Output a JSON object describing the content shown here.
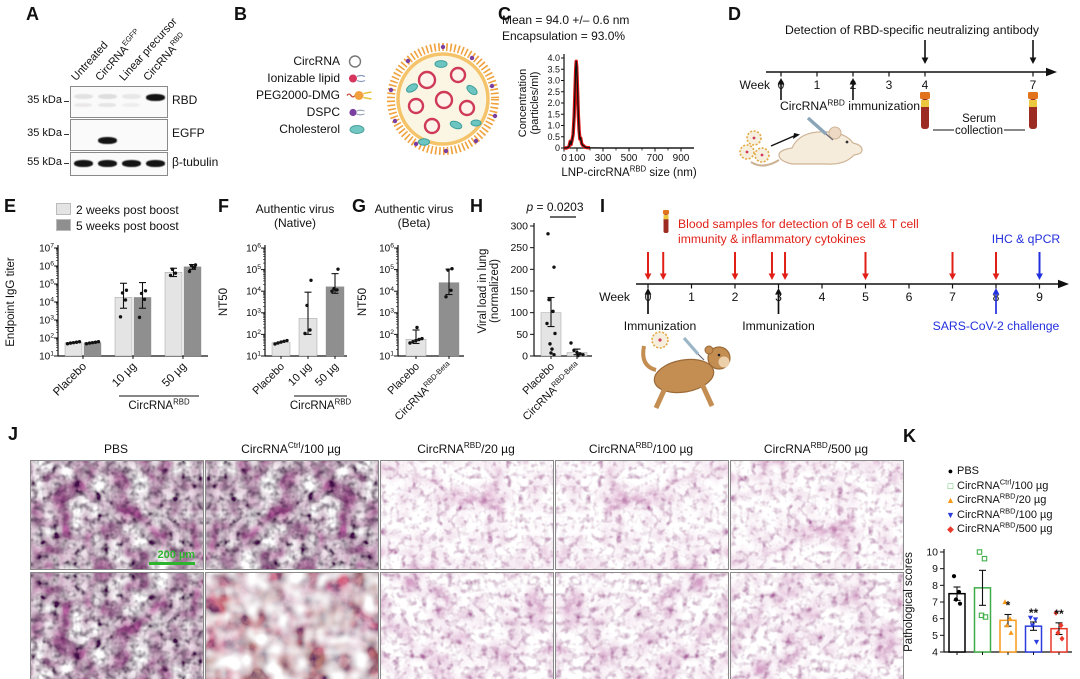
{
  "colors": {
    "bar_light": "#e4e4e4",
    "bar_dark": "#8f8f8f",
    "accent_red": "#e02017",
    "accent_blue": "#2330dd",
    "scalebar_green": "#2db32d"
  },
  "panels": {
    "A": {
      "label": "A",
      "lane_labels": [
        "Untreated",
        "CircRNA^{EGFP}",
        "Linear precursor",
        "CircRNA^{RBD}"
      ],
      "blots": [
        {
          "marker": "35 kDa",
          "target": "RBD",
          "band_y": 7,
          "bands": [
            0.1,
            0.12,
            0.08,
            1
          ],
          "bands2": [
            0.07,
            0.09,
            0.05,
            0
          ]
        },
        {
          "marker": "35 kDa",
          "target": "EGFP",
          "band_y": 17,
          "bands": [
            0,
            1,
            0,
            0
          ]
        },
        {
          "marker": "55 kDa",
          "target": "β-tubulin",
          "band_y": 7,
          "bands": [
            1,
            1,
            1,
            1
          ]
        }
      ]
    },
    "B": {
      "label": "B",
      "legend": [
        {
          "name": "CircRNA",
          "icon": "circle-outline"
        },
        {
          "name": "Ionizable lipid",
          "icon": "red-lipid"
        },
        {
          "name": "PEG2000-DMG",
          "icon": "peg-lipid"
        },
        {
          "name": "DSPC",
          "icon": "purple-lipid"
        },
        {
          "name": "Cholesterol",
          "icon": "teal-oval"
        }
      ]
    },
    "C": {
      "label": "C"
    },
    "D": {
      "label": "D"
    },
    "E": {
      "label": "E"
    },
    "F": {
      "label": "F"
    },
    "G": {
      "label": "G"
    },
    "H": {
      "label": "H"
    },
    "I": {
      "label": "I"
    },
    "J": {
      "label": "J",
      "columns": [
        "PBS",
        "CircRNA^{Ctrl}/100 µg",
        "CircRNA^{RBD}/20 µg",
        "CircRNA^{RBD}/100 µg",
        "CircRNA^{RBD}/500 µg"
      ],
      "scale_bar": "200 µm",
      "images": [
        [
          "dense",
          "dense",
          "light",
          "light",
          "light"
        ],
        [
          "dense",
          "hemorrhagic",
          "light",
          "light",
          "light"
        ]
      ]
    },
    "K": {
      "label": "K"
    }
  },
  "timelines": {
    "D": {
      "title": "Detection of RBD-specific neutralizing antibody",
      "week_word": "Week",
      "ticks": [
        0,
        1,
        2,
        3,
        4,
        7
      ],
      "max_week": 7,
      "detect_arrow_weeks": [
        4,
        7
      ],
      "immunization_arrow_weeks": [
        0,
        2
      ],
      "immunization_label": "CircRNA^{RBD} immunization",
      "tube_weeks": [
        4,
        7
      ],
      "serum_label_line1": "Serum",
      "serum_label_line2": "collection"
    },
    "I": {
      "red_label_line1": "Blood samples for detection of B cell & T cell",
      "red_label_line2": "immunity & inflammatory cytokines",
      "week_word": "Week",
      "ticks": [
        0,
        1,
        2,
        3,
        4,
        5,
        6,
        7,
        8,
        9
      ],
      "red_arrow_weeks": [
        0,
        0.35,
        2,
        2.85,
        3.15,
        5,
        7,
        8
      ],
      "blue_down_arrow_week": 9,
      "ihc_label": "IHC & qPCR",
      "immunization_weeks": [
        0,
        3
      ],
      "immunization_label": "Immunization",
      "challenge_week": 8,
      "challenge_label": "SARS-CoV-2 challenge"
    }
  },
  "chart_data": [
    {
      "id": "C",
      "type": "line",
      "title": "Mean = 94.0 +/– 0.6 nm",
      "subtitle": "Encapsulation = 93.0%",
      "xlabel": "LNP-circRNA^{RBD} size (nm)",
      "ylabel_line1": "Concentration",
      "ylabel_line2": "(particles/ml)",
      "xlim": [
        0,
        1000
      ],
      "ylim": [
        0,
        4
      ],
      "xticks": [
        0,
        100,
        300,
        500,
        700,
        900
      ],
      "yticks": [
        0,
        0.5,
        1,
        1.5,
        2,
        2.5,
        3,
        3.5,
        4
      ],
      "peak_nm": 94.0,
      "series": [
        {
          "name": "LNP size distribution",
          "color_line": "#111111",
          "color_band": "#dd1414",
          "x": [
            0,
            20,
            38,
            48,
            54,
            62,
            70,
            78,
            85,
            90,
            94,
            98,
            104,
            110,
            116,
            122,
            128,
            136,
            144,
            152,
            160,
            175,
            200,
            300,
            500,
            700,
            900,
            1000
          ],
          "y": [
            0,
            0,
            0.05,
            0.3,
            0.15,
            0.35,
            0.6,
            1.4,
            2.6,
            3.5,
            3.85,
            3.6,
            2.6,
            1.5,
            0.8,
            0.4,
            0.45,
            0.2,
            0.12,
            0.1,
            0.04,
            0.02,
            0.01,
            0,
            0,
            0,
            0,
            0
          ]
        }
      ]
    },
    {
      "id": "E",
      "type": "bar",
      "yscale": "log",
      "ylim": [
        10,
        10000000
      ],
      "ylabel": "Endpoint IgG titer",
      "categories": [
        "Placebo",
        "10 µg",
        "50 µg"
      ],
      "group_label": {
        "text": "CircRNA^{RBD}",
        "from": 1,
        "to": 2
      },
      "legend": [
        {
          "name": "2 weeks post boost",
          "color": "#e4e4e4"
        },
        {
          "name": "5 weeks post boost",
          "color": "#8f8f8f"
        }
      ],
      "series": [
        {
          "name": "2 weeks post boost",
          "color": "#e4e4e4",
          "values": [
            55,
            18000,
            450000
          ],
          "err": [
            null,
            [
              4500,
              110000
            ],
            [
              260000,
              750000
            ]
          ],
          "dots": [
            [
              48,
              52,
              55,
              58,
              62
            ],
            [
              1500,
              13000,
              32000,
              45000
            ],
            [
              300000,
              400000,
              650000
            ]
          ]
        },
        {
          "name": "5 weeks post boost",
          "color": "#8f8f8f",
          "values": [
            55,
            18000,
            900000
          ],
          "err": [
            null,
            [
              4500,
              120000
            ],
            [
              650000,
              1200000
            ]
          ],
          "dots": [
            [
              48,
              52,
              55,
              58,
              62
            ],
            [
              1400,
              14000,
              30000,
              42000
            ],
            [
              500000,
              850000,
              1050000,
              1150000
            ]
          ]
        }
      ]
    },
    {
      "id": "F",
      "type": "bar",
      "yscale": "log",
      "ylim": [
        10,
        1000000
      ],
      "title_line1": "Authentic virus",
      "title_line2": "(Native)",
      "ylabel": "NT50",
      "categories": [
        "Placebo",
        "10 µg",
        "50 µg"
      ],
      "group_label": {
        "text": "CircRNA^{RBD}",
        "from": 1,
        "to": 2
      },
      "bars": [
        {
          "value": 42,
          "color": "#e4e4e4",
          "err": null,
          "dots": [
            36,
            40,
            44,
            48,
            52
          ]
        },
        {
          "value": 550,
          "color": "#e4e4e4",
          "err": [
            100,
            9000
          ],
          "dots": [
            110,
            160,
            2200,
            32000
          ]
        },
        {
          "value": 16000,
          "color": "#8f8f8f",
          "err": [
            8000,
            65000
          ],
          "dots": [
            10000,
            11500,
            13000,
            105000
          ]
        }
      ]
    },
    {
      "id": "G",
      "type": "bar",
      "yscale": "log",
      "ylim": [
        10,
        1000000
      ],
      "title_line1": "Authentic virus",
      "title_line2": "(Beta)",
      "ylabel": "NT50",
      "categories": [
        "Placebo",
        "CircRNA^{RBD-Beta}"
      ],
      "bars": [
        {
          "value": 60,
          "color": "#e4e4e4",
          "err": [
            38,
            160
          ],
          "dots": [
            40,
            46,
            52,
            58,
            64,
            210
          ]
        },
        {
          "value": 25000,
          "color": "#8f8f8f",
          "err": [
            7000,
            105000
          ],
          "dots": [
            5500,
            11000,
            95000,
            110000
          ]
        }
      ]
    },
    {
      "id": "H",
      "type": "bar",
      "yscale": "linear",
      "ylim": [
        0,
        300
      ],
      "ytick_step": 50,
      "p_label": "p = 0.0203",
      "ylabel_line1": "Viral load in lung",
      "ylabel_line2": "(normalized)",
      "categories": [
        "Placebo",
        "CircRNA^{RBD-Beta}"
      ],
      "bars": [
        {
          "value": 100,
          "color": "#e4e4e4",
          "err": [
            68,
            135
          ],
          "dots": [
            282,
            205,
            130,
            103,
            75,
            52,
            28,
            16,
            7,
            3
          ]
        },
        {
          "value": 8,
          "color": "#e4e4e4",
          "err": [
            3,
            16
          ],
          "dots": [
            30,
            13,
            8,
            5,
            3,
            1
          ]
        }
      ]
    },
    {
      "id": "K",
      "type": "bar",
      "yscale": "linear",
      "ylim": [
        4,
        10
      ],
      "ytick_step": 1,
      "ylabel": "Pathological scores",
      "categories": [
        "PBS",
        "CircRNA^{Ctrl}/100 µg",
        "CircRNA^{RBD}/20 µg",
        "CircRNA^{RBD}/100 µg",
        "CircRNA^{RBD}/500 µg"
      ],
      "legend": [
        {
          "label": "PBS",
          "symbol": "circle",
          "color": "#000000"
        },
        {
          "label": "CircRNA^{Ctrl}/100 µg",
          "symbol": "square-open",
          "color": "#3fae49"
        },
        {
          "label": "CircRNA^{RBD}/20 µg",
          "symbol": "triangle-up",
          "color": "#f79a1e"
        },
        {
          "label": "CircRNA^{RBD}/100 µg",
          "symbol": "triangle-down",
          "color": "#2b3ddc"
        },
        {
          "label": "CircRNA^{RBD}/500 µg",
          "symbol": "diamond",
          "color": "#e8392a"
        }
      ],
      "bars": [
        {
          "value": 7.5,
          "color": "#000000",
          "symbol": "circle",
          "err": [
            7.1,
            7.9
          ],
          "sig": "",
          "dots": [
            8.55,
            7.6,
            7.15,
            6.9
          ]
        },
        {
          "value": 7.85,
          "color": "#3fae49",
          "symbol": "square-open",
          "err": [
            6.8,
            8.9
          ],
          "sig": "",
          "dots": [
            10,
            9.6,
            6.2,
            6.1
          ]
        },
        {
          "value": 5.9,
          "color": "#f79a1e",
          "symbol": "triangle-up",
          "err": [
            5.55,
            6.25
          ],
          "sig": "*",
          "dots": [
            7.0,
            6.0,
            5.6,
            5.15
          ]
        },
        {
          "value": 5.55,
          "color": "#2b3ddc",
          "symbol": "triangle-down",
          "err": [
            5.3,
            5.8
          ],
          "sig": "**",
          "dots": [
            6.05,
            5.95,
            5.6,
            4.6
          ]
        },
        {
          "value": 5.4,
          "color": "#e8392a",
          "symbol": "diamond",
          "err": [
            5.05,
            5.75
          ],
          "sig": "**",
          "dots": [
            6.35,
            5.6,
            5.15,
            4.8
          ]
        }
      ]
    }
  ]
}
